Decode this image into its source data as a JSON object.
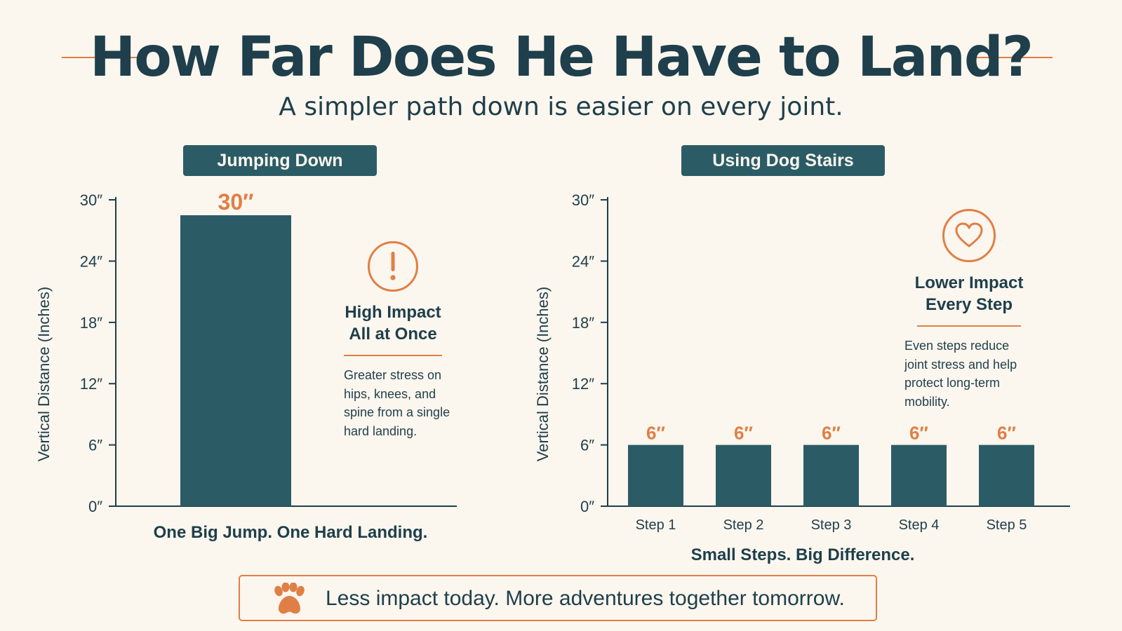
{
  "header": {
    "title": "How Far Does He Have to Land?",
    "subtitle": "A simpler path down is easier on every joint."
  },
  "colors": {
    "background": "#fbf6ee",
    "bar": "#2b5c66",
    "accent": "#e07f45",
    "text": "#1e3f4b"
  },
  "chart_data": [
    {
      "type": "bar",
      "panel_label": "Jumping Down",
      "categories": [
        ""
      ],
      "values": [
        30
      ],
      "data_labels": [
        "30″"
      ],
      "ylabel": "Vertical Distance (Inches)",
      "ylim": [
        0,
        30
      ],
      "yticks": [
        "0″",
        "6″",
        "12″",
        "18″",
        "24″",
        "30″"
      ],
      "xlabel": "One Big Jump. One Hard Landing.",
      "grid": false
    },
    {
      "type": "bar",
      "panel_label": "Using Dog Stairs",
      "categories": [
        "Step 1",
        "Step 2",
        "Step 3",
        "Step 4",
        "Step 5"
      ],
      "values": [
        6,
        6,
        6,
        6,
        6
      ],
      "data_labels": [
        "6″",
        "6″",
        "6″",
        "6″",
        "6″"
      ],
      "ylabel": "Vertical Distance (Inches)",
      "ylim": [
        0,
        30
      ],
      "yticks": [
        "0″",
        "6″",
        "12″",
        "18″",
        "24″",
        "30″"
      ],
      "xlabel": "Small Steps. Big Difference.",
      "grid": false
    }
  ],
  "callouts": {
    "left": {
      "icon": "exclamation-icon",
      "heading_line1": "High Impact",
      "heading_line2": "All at Once",
      "body_lines": [
        "Greater stress on",
        "hips, knees, and",
        "spine from a single",
        "hard landing."
      ]
    },
    "right": {
      "icon": "heart-icon",
      "heading_line1": "Lower Impact",
      "heading_line2": "Every Step",
      "body_lines": [
        "Even steps reduce",
        "joint stress and help",
        "protect long-term",
        "mobility."
      ]
    }
  },
  "footer": {
    "icon": "paw-icon",
    "text": "Less impact today. More adventures together tomorrow."
  }
}
